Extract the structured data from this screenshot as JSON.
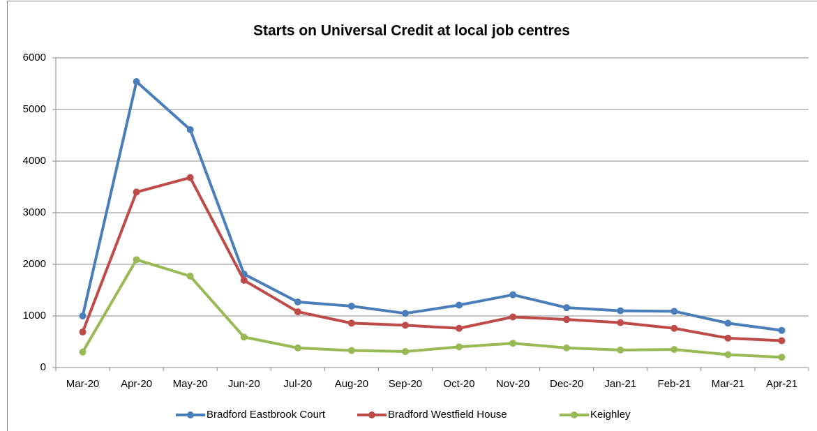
{
  "chart_data": {
    "type": "line",
    "title": "Starts on Universal Credit at local job centres",
    "categories": [
      "Mar-20",
      "Apr-20",
      "May-20",
      "Jun-20",
      "Jul-20",
      "Aug-20",
      "Sep-20",
      "Oct-20",
      "Nov-20",
      "Dec-20",
      "Jan-21",
      "Feb-21",
      "Mar-21",
      "Apr-21"
    ],
    "series": [
      {
        "name": "Bradford Eastbrook Court",
        "color": "#4a7ebb",
        "values": [
          1000,
          5540,
          4610,
          1810,
          1270,
          1190,
          1050,
          1210,
          1410,
          1160,
          1100,
          1090,
          860,
          720
        ]
      },
      {
        "name": "Bradford Westfield House",
        "color": "#be4b48",
        "values": [
          690,
          3400,
          3680,
          1690,
          1080,
          860,
          820,
          760,
          980,
          930,
          870,
          760,
          570,
          520
        ]
      },
      {
        "name": "Keighley",
        "color": "#98b954",
        "values": [
          300,
          2090,
          1770,
          590,
          380,
          330,
          310,
          400,
          470,
          380,
          340,
          350,
          250,
          200
        ]
      }
    ],
    "ylim": [
      0,
      6000
    ],
    "yticks": [
      0,
      1000,
      2000,
      3000,
      4000,
      5000,
      6000
    ],
    "grid": true,
    "legend": "bottom"
  }
}
